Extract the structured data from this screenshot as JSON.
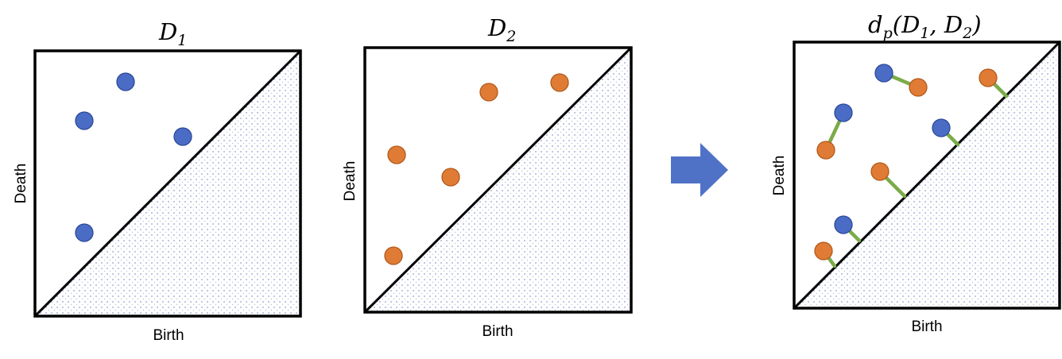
{
  "colors": {
    "d1_point": "#4a6cc5",
    "d1_point_stroke": "#2d4a9a",
    "d2_point": "#e07b35",
    "d2_point_stroke": "#b25a1c",
    "matching_line": "#7aab48",
    "arrow": "#5072c6",
    "shading_dot": "#8fa0cf"
  },
  "panels": [
    {
      "id": "d1",
      "title_main": "D",
      "title_sub": "1",
      "xlabel": "Birth",
      "ylabel": "Death"
    },
    {
      "id": "d2",
      "title_main": "D",
      "title_sub": "2",
      "xlabel": "Birth",
      "ylabel": "Death"
    },
    {
      "id": "dp",
      "title_parts": [
        "d",
        "p",
        "(D",
        "1",
        ", D",
        "2",
        ")"
      ],
      "xlabel": "Birth",
      "ylabel": "Death"
    }
  ],
  "arrow_icon": "right-arrow-icon"
}
